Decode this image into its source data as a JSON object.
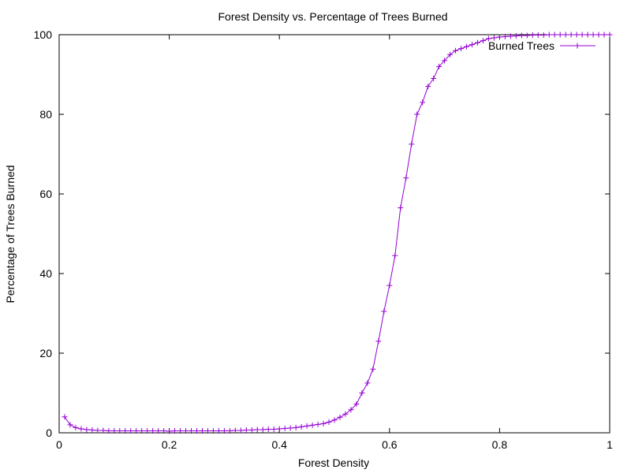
{
  "chart_data": {
    "type": "line",
    "title": "Forest Density vs. Percentage of Trees Burned",
    "xlabel": "Forest Density",
    "ylabel": "Percentage of Trees Burned",
    "xlim": [
      0,
      1
    ],
    "ylim": [
      0,
      100
    ],
    "xticks": [
      0,
      0.2,
      0.4,
      0.6,
      0.8,
      1
    ],
    "xtick_labels": [
      "0",
      "0.2",
      "0.4",
      "0.6",
      "0.8",
      "1"
    ],
    "yticks": [
      0,
      20,
      40,
      60,
      80,
      100
    ],
    "ytick_labels": [
      "0",
      "20",
      "40",
      "60",
      "80",
      "100"
    ],
    "grid": false,
    "legend_position": "top-right",
    "series": [
      {
        "name": "Burned Trees",
        "color": "#9400d3",
        "marker": "plus",
        "x": [
          0.01,
          0.02,
          0.03,
          0.04,
          0.05,
          0.06,
          0.07,
          0.08,
          0.09,
          0.1,
          0.11,
          0.12,
          0.13,
          0.14,
          0.15,
          0.16,
          0.17,
          0.18,
          0.19,
          0.2,
          0.21,
          0.22,
          0.23,
          0.24,
          0.25,
          0.26,
          0.27,
          0.28,
          0.29,
          0.3,
          0.31,
          0.32,
          0.33,
          0.34,
          0.35,
          0.36,
          0.37,
          0.38,
          0.39,
          0.4,
          0.41,
          0.42,
          0.43,
          0.44,
          0.45,
          0.46,
          0.47,
          0.48,
          0.49,
          0.5,
          0.51,
          0.52,
          0.53,
          0.54,
          0.55,
          0.56,
          0.57,
          0.58,
          0.59,
          0.6,
          0.61,
          0.62,
          0.63,
          0.64,
          0.65,
          0.66,
          0.67,
          0.68,
          0.69,
          0.7,
          0.71,
          0.72,
          0.73,
          0.74,
          0.75,
          0.76,
          0.77,
          0.78,
          0.79,
          0.8,
          0.81,
          0.82,
          0.83,
          0.84,
          0.85,
          0.86,
          0.87,
          0.88,
          0.89,
          0.9,
          0.91,
          0.92,
          0.93,
          0.94,
          0.95,
          0.96,
          0.97,
          0.98,
          0.99,
          1.0
        ],
        "y": [
          4.0,
          2.0,
          1.3,
          1.0,
          0.8,
          0.7,
          0.6,
          0.6,
          0.5,
          0.5,
          0.5,
          0.5,
          0.5,
          0.5,
          0.5,
          0.5,
          0.5,
          0.5,
          0.5,
          0.4,
          0.5,
          0.5,
          0.5,
          0.5,
          0.5,
          0.5,
          0.5,
          0.5,
          0.5,
          0.5,
          0.5,
          0.6,
          0.6,
          0.7,
          0.7,
          0.8,
          0.8,
          0.9,
          0.9,
          1.0,
          1.1,
          1.2,
          1.3,
          1.5,
          1.7,
          1.9,
          2.1,
          2.3,
          2.7,
          3.2,
          3.9,
          4.7,
          5.8,
          7.2,
          10.0,
          12.5,
          16.0,
          23.0,
          30.5,
          37.0,
          44.5,
          56.5,
          64.0,
          72.5,
          80.0,
          83.0,
          87.0,
          89.0,
          92.0,
          93.5,
          95.0,
          96.0,
          96.5,
          97.0,
          97.5,
          98.0,
          98.5,
          99.0,
          99.2,
          99.4,
          99.5,
          99.6,
          99.7,
          99.8,
          99.8,
          99.9,
          99.9,
          99.9,
          100,
          100,
          100,
          100,
          100,
          100,
          100,
          100,
          100,
          100,
          100,
          100
        ]
      }
    ]
  }
}
